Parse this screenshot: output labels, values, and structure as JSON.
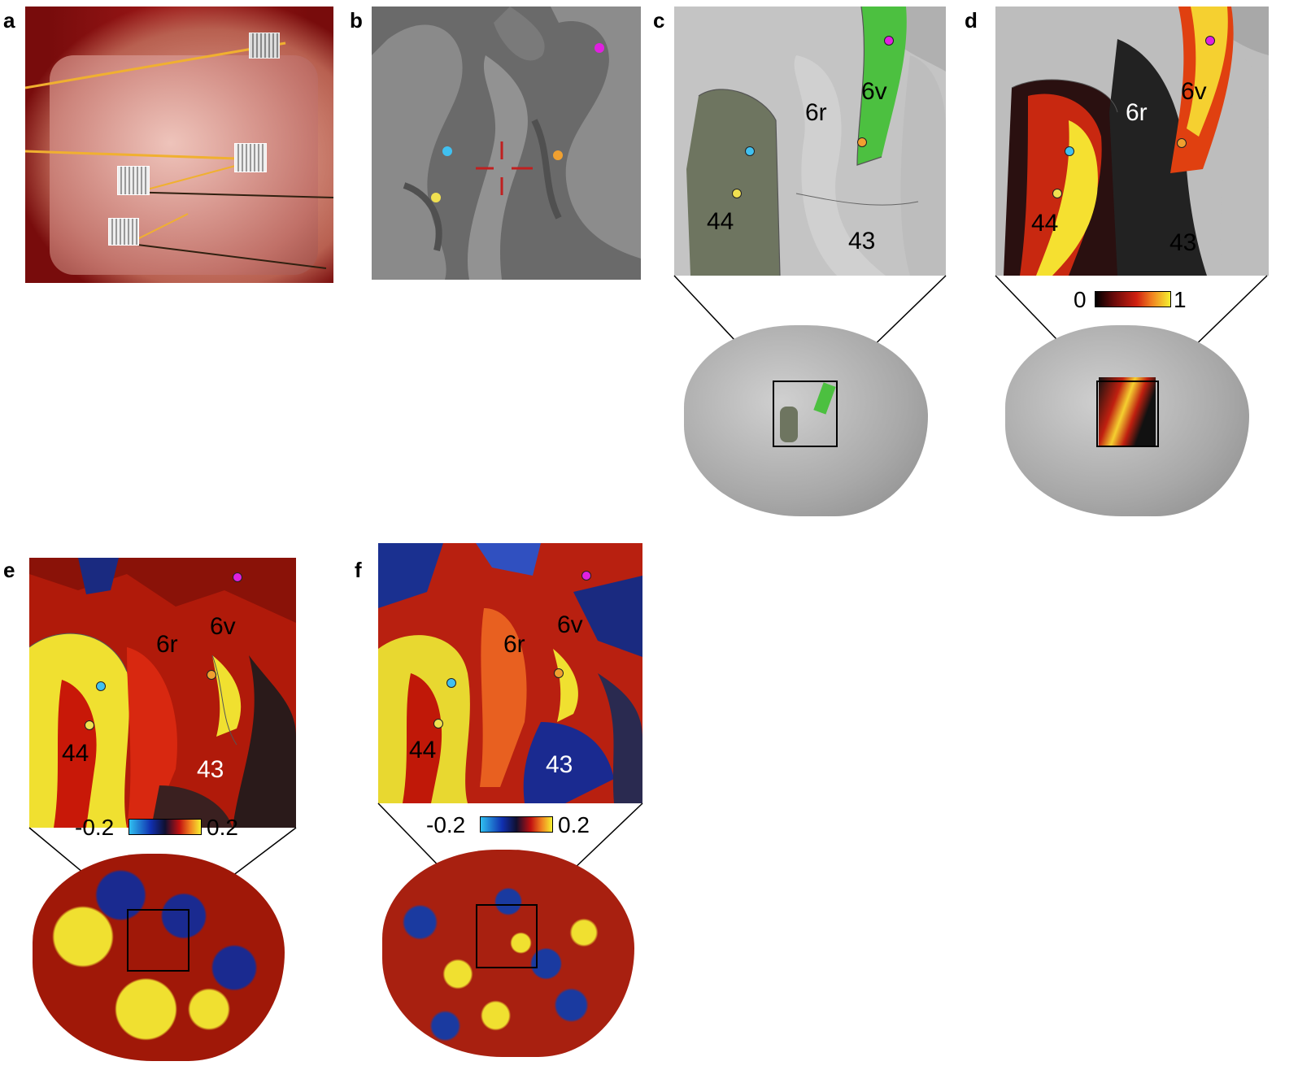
{
  "panels": {
    "a": {
      "letter": "a"
    },
    "b": {
      "letter": "b"
    },
    "c": {
      "letter": "c",
      "labels": {
        "area6r": "6r",
        "area6v": "6v",
        "area44": "44",
        "area43": "43"
      }
    },
    "d": {
      "letter": "d",
      "labels": {
        "area6r": "6r",
        "area6v": "6v",
        "area44": "44",
        "area43": "43"
      },
      "colorbar": {
        "min": "0",
        "max": "1"
      }
    },
    "e": {
      "letter": "e",
      "labels": {
        "area6r": "6r",
        "area6v": "6v",
        "area44": "44",
        "area43": "43"
      },
      "colorbar": {
        "min": "-0.2",
        "max": "0.2"
      }
    },
    "f": {
      "letter": "f",
      "labels": {
        "area6r": "6r",
        "area6v": "6v",
        "area44": "44",
        "area43": "43"
      },
      "colorbar": {
        "min": "-0.2",
        "max": "0.2"
      }
    }
  },
  "marker_colors": {
    "magenta": "#e020e0",
    "cyan": "#40c0f0",
    "orange": "#f0a030",
    "yellow": "#f0e050"
  },
  "colors": {
    "hot_dark": "#1a0a0a",
    "hot_red": "#c01010",
    "hot_yellow": "#f5f020",
    "cool_blue": "#2040b0",
    "cyan": "#30b0f0",
    "area6v_green": "#50c050",
    "area44_olive": "#707860",
    "surface_gray": "#b8b8b8"
  }
}
